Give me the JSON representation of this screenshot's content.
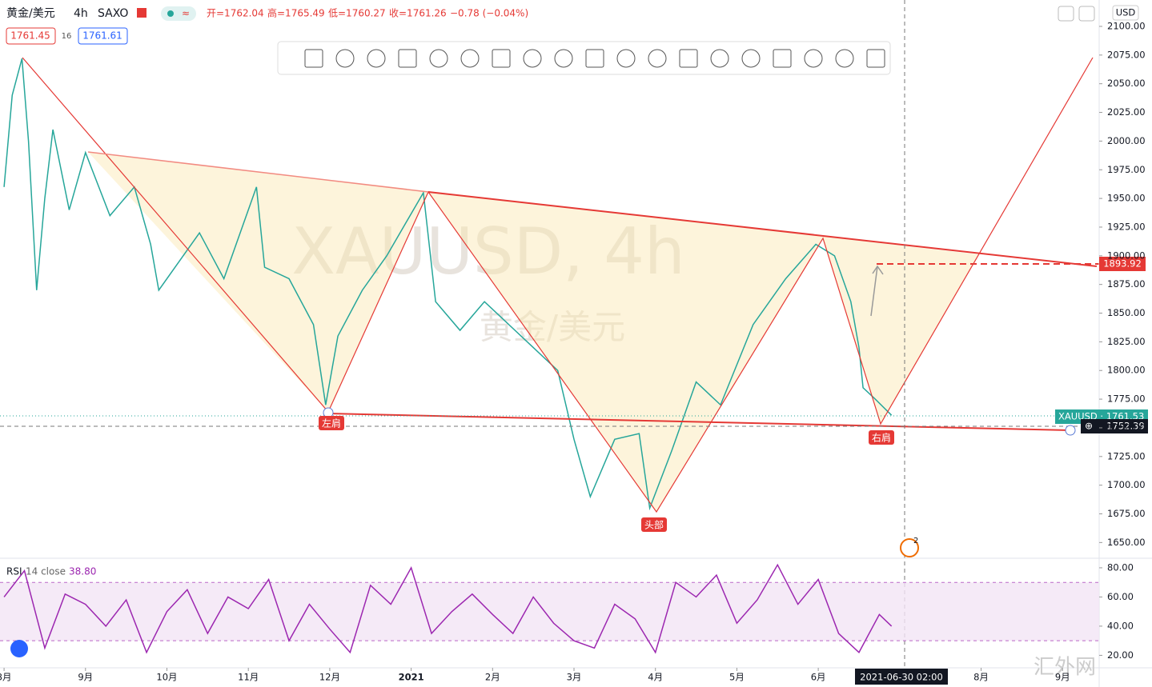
{
  "header": {
    "symbol": "黄金/美元",
    "interval": "4h",
    "exchange": "SAXO",
    "ohlc": [
      "开=1762.04",
      "高=1765.49",
      "低=1760.27",
      "收=1761.26",
      "−0.78 (−0.04%)"
    ],
    "bid": "1761.45",
    "spread": "16",
    "ask": "1761.61"
  },
  "watermark": {
    "line1": "XAUUSD, 4h",
    "line2": "黄金/美元"
  },
  "currency": "USD",
  "annotations": {
    "left_shoulder": "左肩",
    "head": "头部",
    "right_shoulder": "右肩"
  },
  "price_labels": {
    "target": "1893.92",
    "symbol": "XAUUSD · 1761.53",
    "crosshair": "1752.39",
    "events": "2"
  },
  "crosshair_time": "2021-06-30   02:00",
  "site_watermark": "汇外网",
  "chart_data": {
    "type": "line",
    "color": "#26a69a",
    "xlim": [
      -0.05,
      13.45
    ],
    "xticks": [
      {
        "value": 0,
        "label": "8月"
      },
      {
        "value": 1,
        "label": "9月"
      },
      {
        "value": 2,
        "label": "10月"
      },
      {
        "value": 3,
        "label": "11月"
      },
      {
        "value": 4,
        "label": "12月"
      },
      {
        "value": 5,
        "label": "2021"
      },
      {
        "value": 6,
        "label": "2月"
      },
      {
        "value": 7,
        "label": "3月"
      },
      {
        "value": 8,
        "label": "4月"
      },
      {
        "value": 9,
        "label": "5月"
      },
      {
        "value": 10,
        "label": "6月"
      },
      {
        "value": 12,
        "label": "8月"
      },
      {
        "value": 13,
        "label": "9月"
      }
    ],
    "ylim": [
      1637,
      2123
    ],
    "yticks": [
      {
        "value": 2100,
        "label": "2100.00"
      },
      {
        "value": 2075,
        "label": "2075.00"
      },
      {
        "value": 2050,
        "label": "2050.00"
      },
      {
        "value": 2025,
        "label": "2025.00"
      },
      {
        "value": 2000,
        "label": "2000.00"
      },
      {
        "value": 1975,
        "label": "1975.00"
      },
      {
        "value": 1950,
        "label": "1950.00"
      },
      {
        "value": 1925,
        "label": "1925.00"
      },
      {
        "value": 1900,
        "label": "1900.00"
      },
      {
        "value": 1875,
        "label": "1875.00"
      },
      {
        "value": 1850,
        "label": "1850.00"
      },
      {
        "value": 1825,
        "label": "1825.00"
      },
      {
        "value": 1800,
        "label": "1800.00"
      },
      {
        "value": 1775,
        "label": "1775.00"
      },
      {
        "value": 1750,
        "label": "1750.00"
      },
      {
        "value": 1725,
        "label": "1725.00"
      },
      {
        "value": 1700,
        "label": "1700.00"
      },
      {
        "value": 1675,
        "label": "1675.00"
      },
      {
        "value": 1650,
        "label": "1650.00"
      }
    ],
    "x": [
      0,
      0.1,
      0.22,
      0.3,
      0.4,
      0.5,
      0.6,
      0.8,
      1.0,
      1.3,
      1.6,
      1.8,
      1.9,
      2.2,
      2.4,
      2.7,
      3.1,
      3.2,
      3.5,
      3.8,
      3.95,
      4.1,
      4.4,
      4.7,
      5.15,
      5.3,
      5.6,
      5.9,
      6.2,
      6.5,
      6.8,
      7.0,
      7.2,
      7.5,
      7.8,
      7.93,
      8.2,
      8.5,
      8.8,
      9.2,
      9.6,
      9.97,
      10.2,
      10.4,
      10.5,
      10.55,
      10.7,
      10.9
    ],
    "values": [
      1960,
      2040,
      2072,
      2000,
      1870,
      1950,
      2010,
      1940,
      1990,
      1935,
      1960,
      1910,
      1870,
      1900,
      1920,
      1880,
      1960,
      1890,
      1880,
      1840,
      1770,
      1830,
      1870,
      1900,
      1955,
      1860,
      1835,
      1860,
      1840,
      1820,
      1800,
      1740,
      1690,
      1740,
      1745,
      1680,
      1730,
      1790,
      1770,
      1840,
      1880,
      1910,
      1900,
      1860,
      1820,
      1785,
      1775,
      1761
    ],
    "rsi": {
      "name": "RSI",
      "params": "14 close",
      "last": "38.80",
      "color": "#9c27b0",
      "ylim": [
        12,
        86
      ],
      "band": [
        70,
        30
      ],
      "yticks": [
        {
          "value": 80,
          "label": "80.00"
        },
        {
          "value": 60,
          "label": "60.00"
        },
        {
          "value": 40,
          "label": "40.00"
        },
        {
          "value": 20,
          "label": "20.00"
        }
      ],
      "x": [
        0,
        0.25,
        0.5,
        0.75,
        1,
        1.25,
        1.5,
        1.75,
        2,
        2.25,
        2.5,
        2.75,
        3,
        3.25,
        3.5,
        3.75,
        4,
        4.25,
        4.5,
        4.75,
        5,
        5.25,
        5.5,
        5.75,
        6,
        6.25,
        6.5,
        6.75,
        7,
        7.25,
        7.5,
        7.75,
        8,
        8.25,
        8.5,
        8.75,
        9,
        9.25,
        9.5,
        9.75,
        10,
        10.25,
        10.5,
        10.75,
        10.9
      ],
      "values": [
        60,
        78,
        25,
        62,
        55,
        40,
        58,
        22,
        50,
        65,
        35,
        60,
        52,
        72,
        30,
        55,
        38,
        22,
        68,
        55,
        80,
        35,
        50,
        62,
        48,
        35,
        60,
        42,
        30,
        25,
        55,
        45,
        22,
        70,
        60,
        75,
        42,
        58,
        82,
        55,
        72,
        35,
        22,
        48,
        40
      ]
    }
  }
}
